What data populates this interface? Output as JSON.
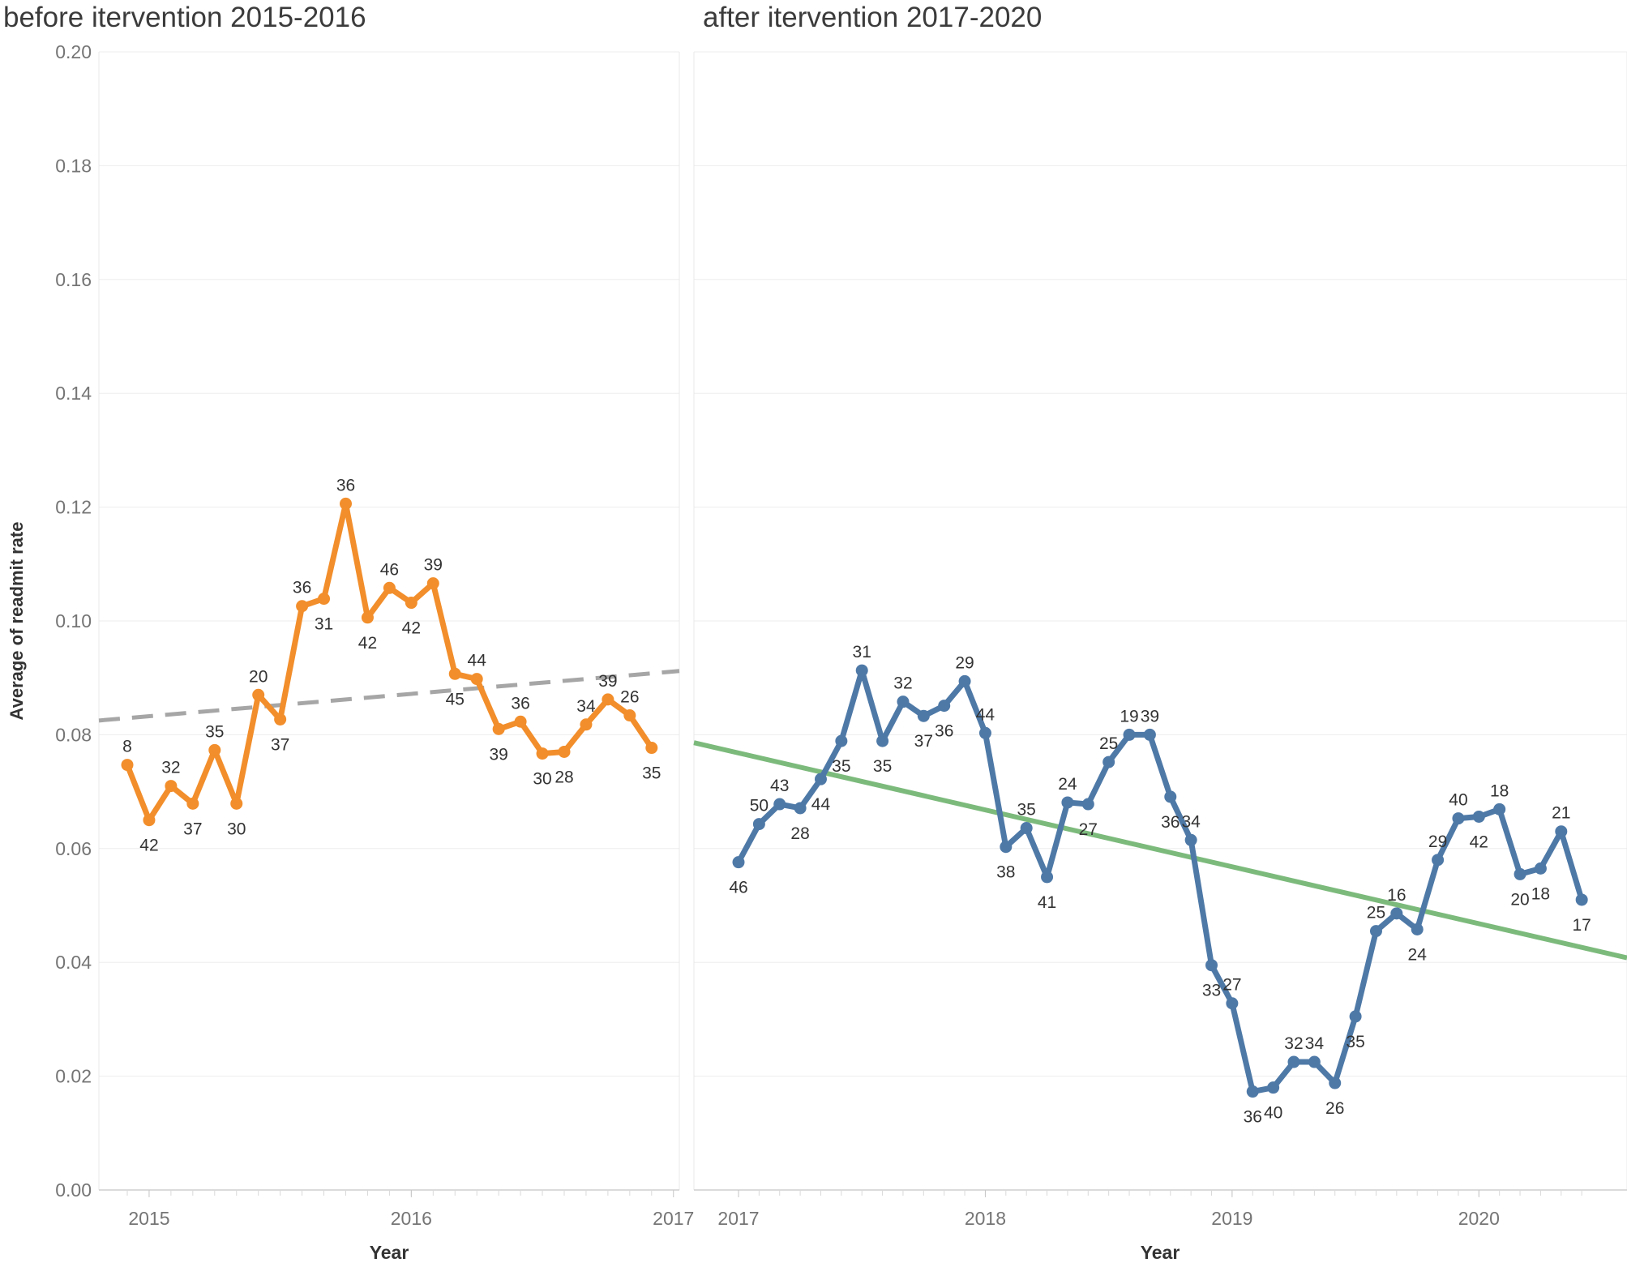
{
  "page": {
    "background": "#ffffff",
    "title_color": "#3b3b3b"
  },
  "y_axis": {
    "title": "Average of readmit rate",
    "tick_labels": [
      "0.00",
      "0.02",
      "0.04",
      "0.06",
      "0.08",
      "0.10",
      "0.12",
      "0.14",
      "0.16",
      "0.18",
      "0.20"
    ],
    "tick_values": [
      0.0,
      0.02,
      0.04,
      0.06,
      0.08,
      0.1,
      0.12,
      0.14,
      0.16,
      0.18,
      0.2
    ],
    "min": 0.0,
    "max": 0.2
  },
  "chart_data": [
    {
      "type": "line",
      "title": "before itervention 2015-2016",
      "xlabel": "Year",
      "ylabel": "Average of readmit rate",
      "ylim": [
        0.0,
        0.2
      ],
      "grid": true,
      "legend": "none",
      "color": "#F28E2B",
      "x_tick_labels": [
        "2015",
        "2016",
        "2017"
      ],
      "x_tick_month_index": [
        1,
        13,
        25
      ],
      "months": 25,
      "point_labels": [
        "8",
        "42",
        "32",
        "37",
        "35",
        "30",
        "20",
        "37",
        "36",
        "31",
        "36",
        "42",
        "46",
        "42",
        "39",
        "45",
        "44",
        "39",
        "36",
        "30",
        "28",
        "34",
        "39",
        "26",
        "35"
      ],
      "values": [
        0.0747,
        0.065,
        0.071,
        0.0679,
        0.0773,
        0.0679,
        0.087,
        0.0827,
        0.1026,
        0.1039,
        0.1206,
        0.1006,
        0.1058,
        0.1032,
        0.1066,
        0.0907,
        0.0898,
        0.081,
        0.0823,
        0.0767,
        0.077,
        0.0818,
        0.0862,
        0.0834,
        0.0777
      ],
      "trend_line": {
        "style": "dashed",
        "color": "#A6A6A6",
        "start_value": 0.0825,
        "end_value": 0.0912
      }
    },
    {
      "type": "line",
      "title": "after itervention 2017-2020",
      "xlabel": "Year",
      "ylabel": "Average of readmit rate",
      "ylim": [
        0.0,
        0.2
      ],
      "grid": true,
      "legend": "none",
      "color": "#4E79A7",
      "x_tick_labels": [
        "2017",
        "2018",
        "2019",
        "2020"
      ],
      "x_tick_month_index": [
        0,
        12,
        24,
        36
      ],
      "months": 42,
      "point_labels": [
        "46",
        "50",
        "43",
        "28",
        "44",
        "35",
        "31",
        "35",
        "32",
        "37",
        "36",
        "29",
        "44",
        "38",
        "35",
        "41",
        "24",
        "27",
        "25",
        "19",
        "39",
        "36",
        "34",
        "33",
        "27",
        "36",
        "40",
        "32",
        "34",
        "26",
        "35",
        "25",
        "16",
        "24",
        "29",
        "40",
        "42",
        "18",
        "20",
        "18",
        "21",
        "17"
      ],
      "values": [
        0.0576,
        0.0643,
        0.0678,
        0.0671,
        0.0722,
        0.0789,
        0.0913,
        0.0789,
        0.0858,
        0.0833,
        0.0851,
        0.0894,
        0.0803,
        0.0603,
        0.0636,
        0.055,
        0.0681,
        0.0678,
        0.0752,
        0.08,
        0.08,
        0.0691,
        0.0615,
        0.0395,
        0.0328,
        0.0173,
        0.018,
        0.0225,
        0.0225,
        0.0188,
        0.0305,
        0.0455,
        0.0486,
        0.0458,
        0.058,
        0.0653,
        0.0656,
        0.0669,
        0.0555,
        0.0565,
        0.063,
        0.051
      ],
      "trend_line": {
        "style": "solid",
        "color": "#7CBA7C",
        "start_value": 0.0786,
        "end_value": 0.0408
      }
    }
  ]
}
